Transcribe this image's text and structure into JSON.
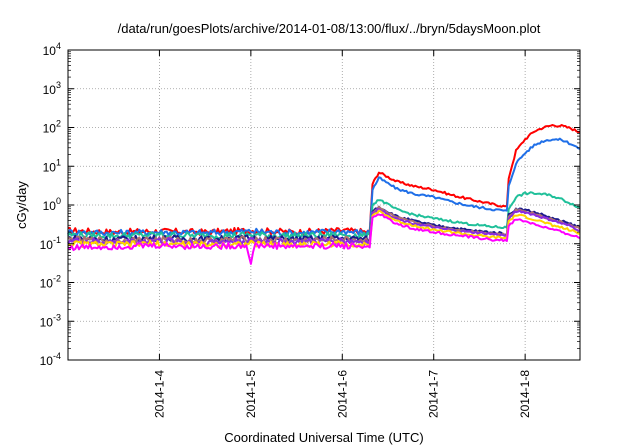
{
  "chart_data": {
    "type": "line",
    "title": "/data/run/goesPlots/archive/2014-01-08/13:00/flux/../bryn/5daysMoon.plot",
    "xlabel": "Coordinated Universal Time (UTC)",
    "ylabel": "cGy/day",
    "y_scale": "log",
    "ylim": [
      0.0001,
      10000
    ],
    "xlim": [
      3.0,
      8.6
    ],
    "x_unit": "days (January 2014)",
    "grid": true,
    "y_ticks": [
      {
        "value": 0.0001,
        "base": "10",
        "exp": "-4"
      },
      {
        "value": 0.001,
        "base": "10",
        "exp": "-3"
      },
      {
        "value": 0.01,
        "base": "10",
        "exp": "-2"
      },
      {
        "value": 0.1,
        "base": "10",
        "exp": "-1"
      },
      {
        "value": 1,
        "base": "10",
        "exp": "0"
      },
      {
        "value": 10,
        "base": "10",
        "exp": "1"
      },
      {
        "value": 100,
        "base": "10",
        "exp": "2"
      },
      {
        "value": 1000,
        "base": "10",
        "exp": "3"
      },
      {
        "value": 10000,
        "base": "10",
        "exp": "4"
      }
    ],
    "x_ticks": [
      {
        "value": 4,
        "label": "2014-1-4"
      },
      {
        "value": 5,
        "label": "2014-1-5"
      },
      {
        "value": 6,
        "label": "2014-1-6"
      },
      {
        "value": 7,
        "label": "2014-1-7"
      },
      {
        "value": 8,
        "label": "2014-1-8"
      }
    ],
    "series": [
      {
        "color": "#ff0000",
        "x": [
          3.0,
          3.5,
          4.0,
          4.5,
          5.0,
          5.5,
          6.0,
          6.3,
          6.33,
          6.4,
          6.6,
          6.8,
          7.0,
          7.2,
          7.4,
          7.6,
          7.8,
          7.82,
          7.9,
          8.0,
          8.1,
          8.2,
          8.3,
          8.4,
          8.5,
          8.6
        ],
        "y": [
          0.22,
          0.2,
          0.21,
          0.2,
          0.22,
          0.2,
          0.22,
          0.2,
          3.5,
          7.0,
          4.0,
          3.0,
          2.5,
          1.8,
          1.4,
          1.1,
          0.9,
          5.0,
          25,
          50,
          80,
          100,
          115,
          110,
          95,
          75
        ]
      },
      {
        "color": "#1f6fe8",
        "x": [
          3.0,
          3.5,
          4.0,
          4.5,
          5.0,
          5.5,
          6.0,
          6.3,
          6.33,
          6.4,
          6.6,
          6.8,
          7.0,
          7.2,
          7.4,
          7.6,
          7.8,
          7.82,
          7.9,
          8.0,
          8.1,
          8.2,
          8.3,
          8.4,
          8.5,
          8.6
        ],
        "y": [
          0.2,
          0.19,
          0.2,
          0.19,
          0.21,
          0.19,
          0.21,
          0.19,
          2.5,
          5.0,
          2.6,
          1.9,
          1.6,
          1.2,
          0.95,
          0.8,
          0.7,
          3.0,
          12,
          22,
          35,
          45,
          50,
          48,
          38,
          28
        ]
      },
      {
        "color": "#20c09a",
        "x": [
          3.0,
          3.5,
          4.0,
          4.5,
          5.0,
          5.5,
          6.0,
          6.3,
          6.33,
          6.4,
          6.6,
          6.8,
          7.0,
          7.2,
          7.4,
          7.6,
          7.8,
          7.82,
          7.9,
          8.0,
          8.1,
          8.2,
          8.3,
          8.4,
          8.5,
          8.6
        ],
        "y": [
          0.17,
          0.16,
          0.17,
          0.16,
          0.17,
          0.16,
          0.17,
          0.16,
          1.0,
          1.4,
          0.75,
          0.55,
          0.45,
          0.38,
          0.32,
          0.28,
          0.26,
          0.8,
          1.6,
          2.0,
          2.0,
          1.9,
          1.7,
          1.4,
          1.1,
          0.85
        ]
      },
      {
        "color": "#1a1a8c",
        "x": [
          3.0,
          3.5,
          4.0,
          4.5,
          5.0,
          5.5,
          6.0,
          6.3,
          6.33,
          6.4,
          6.6,
          6.8,
          7.0,
          7.2,
          7.4,
          7.6,
          7.8,
          7.82,
          7.9,
          8.0,
          8.1,
          8.2,
          8.3,
          8.4,
          8.5,
          8.6
        ],
        "y": [
          0.14,
          0.13,
          0.14,
          0.13,
          0.14,
          0.13,
          0.14,
          0.13,
          0.7,
          0.9,
          0.5,
          0.38,
          0.3,
          0.26,
          0.22,
          0.2,
          0.18,
          0.55,
          0.8,
          0.75,
          0.65,
          0.55,
          0.45,
          0.38,
          0.32,
          0.26
        ]
      },
      {
        "color": "#b07070",
        "x": [
          3.0,
          3.5,
          4.0,
          4.5,
          5.0,
          5.5,
          6.0,
          6.3,
          6.33,
          6.4,
          6.6,
          6.8,
          7.0,
          7.2,
          7.4,
          7.6,
          7.8,
          7.82,
          7.9,
          8.0,
          8.1,
          8.2,
          8.3,
          8.4,
          8.5,
          8.6
        ],
        "y": [
          0.13,
          0.12,
          0.13,
          0.12,
          0.13,
          0.12,
          0.13,
          0.12,
          0.65,
          0.85,
          0.46,
          0.35,
          0.28,
          0.24,
          0.21,
          0.19,
          0.17,
          0.5,
          0.75,
          0.7,
          0.6,
          0.5,
          0.42,
          0.35,
          0.3,
          0.24
        ]
      },
      {
        "color": "#8a2be2",
        "x": [
          3.0,
          3.5,
          4.0,
          4.5,
          5.0,
          5.5,
          6.0,
          6.3,
          6.33,
          6.4,
          6.6,
          6.8,
          7.0,
          7.2,
          7.4,
          7.6,
          7.8,
          7.82,
          7.9,
          8.0,
          8.1,
          8.2,
          8.3,
          8.4,
          8.5,
          8.6
        ],
        "y": [
          0.12,
          0.11,
          0.12,
          0.11,
          0.12,
          0.11,
          0.12,
          0.11,
          0.6,
          0.8,
          0.43,
          0.33,
          0.26,
          0.22,
          0.2,
          0.18,
          0.16,
          0.45,
          0.7,
          0.65,
          0.55,
          0.47,
          0.4,
          0.33,
          0.28,
          0.22
        ]
      },
      {
        "color": "#ffd400",
        "x": [
          3.0,
          3.5,
          4.0,
          4.5,
          5.0,
          5.5,
          6.0,
          6.3,
          6.33,
          6.4,
          6.6,
          6.8,
          7.0,
          7.2,
          7.4,
          7.6,
          7.8,
          7.82,
          7.9,
          8.0,
          8.1,
          8.2,
          8.3,
          8.4,
          8.5,
          8.6
        ],
        "y": [
          0.1,
          0.095,
          0.1,
          0.095,
          0.1,
          0.095,
          0.1,
          0.095,
          0.5,
          0.7,
          0.38,
          0.29,
          0.23,
          0.2,
          0.17,
          0.15,
          0.14,
          0.38,
          0.55,
          0.5,
          0.42,
          0.36,
          0.3,
          0.26,
          0.22,
          0.18
        ]
      },
      {
        "color": "#ff00ff",
        "x": [
          3.0,
          3.5,
          4.0,
          4.5,
          4.95,
          5.0,
          5.05,
          5.5,
          6.0,
          6.3,
          6.33,
          6.4,
          6.6,
          6.8,
          7.0,
          7.2,
          7.4,
          7.6,
          7.8,
          7.82,
          7.9,
          8.0,
          8.1,
          8.2,
          8.3,
          8.4,
          8.5,
          8.6
        ],
        "y": [
          0.08,
          0.085,
          0.09,
          0.085,
          0.09,
          0.035,
          0.09,
          0.085,
          0.09,
          0.085,
          0.45,
          0.6,
          0.32,
          0.24,
          0.2,
          0.17,
          0.15,
          0.13,
          0.12,
          0.3,
          0.42,
          0.38,
          0.32,
          0.27,
          0.23,
          0.2,
          0.17,
          0.14
        ]
      }
    ]
  }
}
